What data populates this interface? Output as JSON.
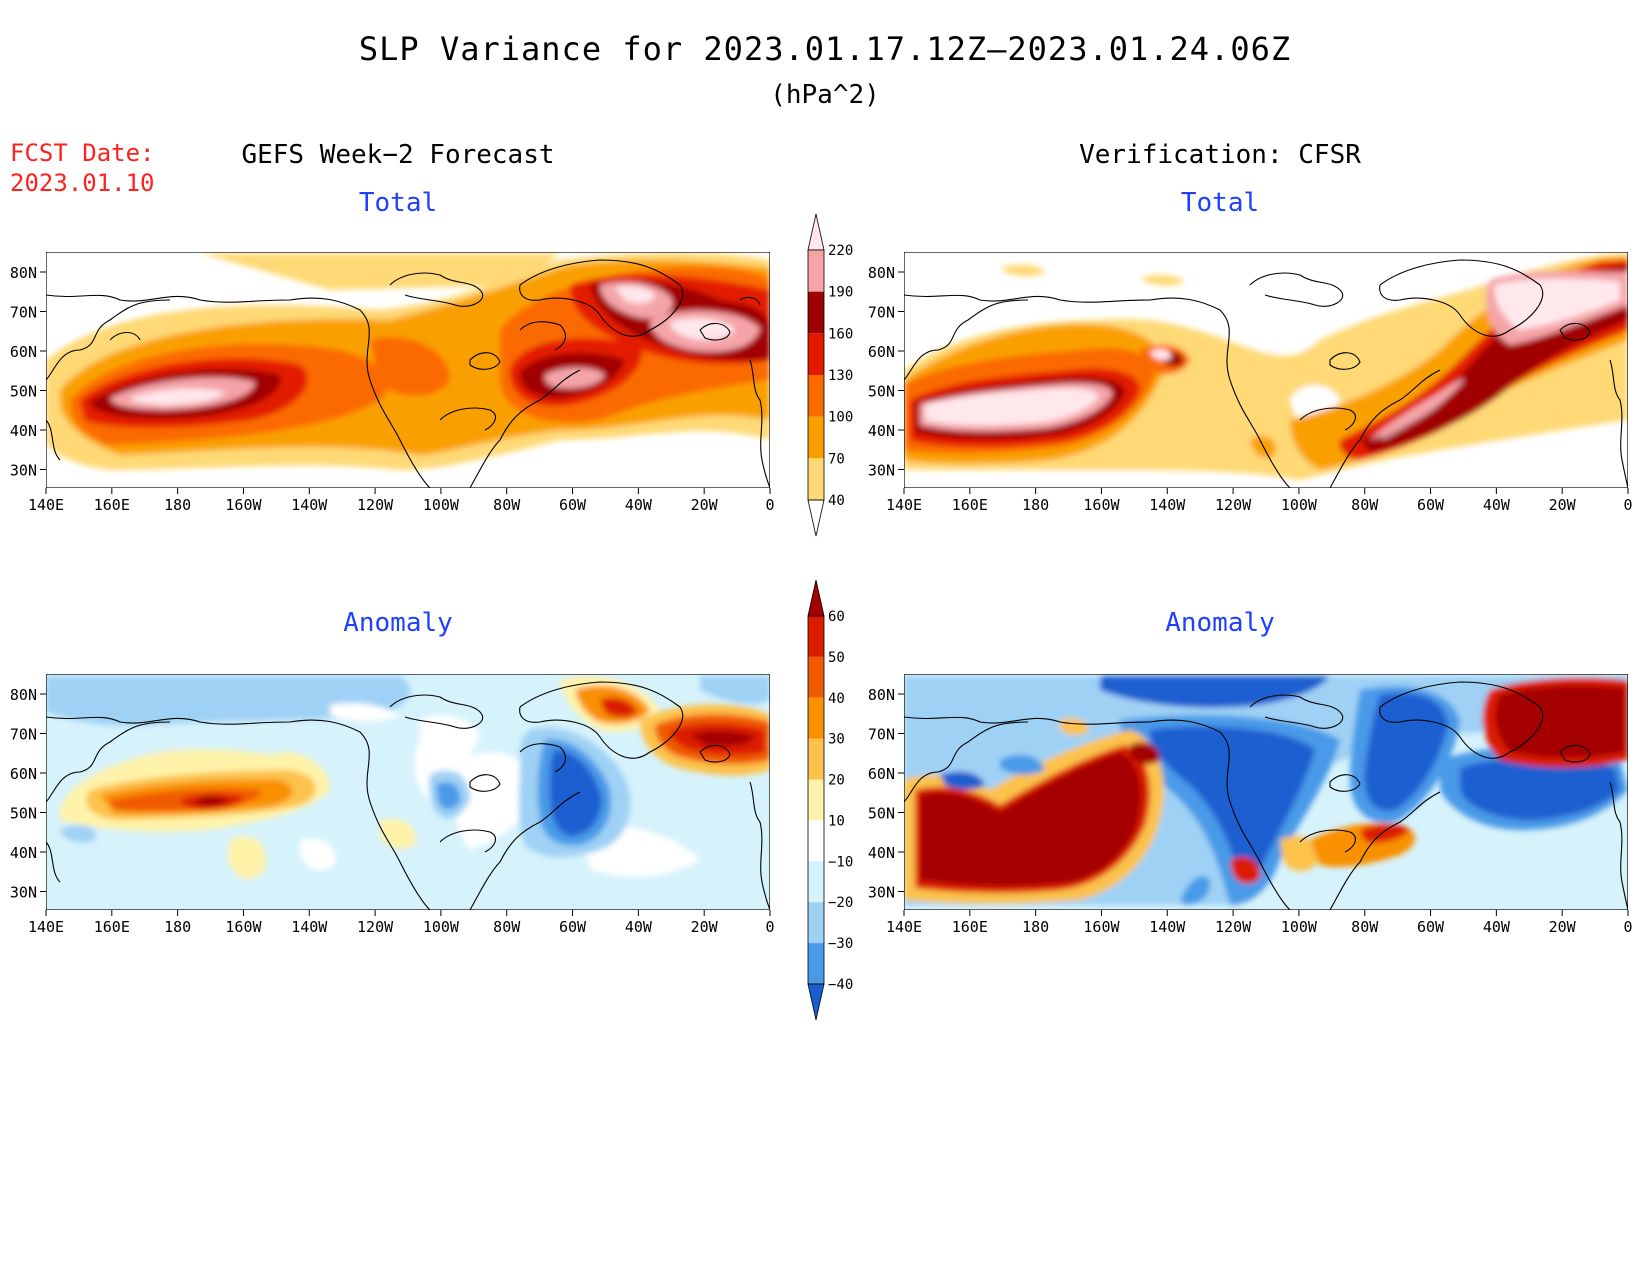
{
  "header": {
    "title": "SLP Variance for 2023.01.17.12Z–2023.01.24.06Z",
    "units": "(hPa^2)",
    "fcst_label": "FCST Date:",
    "fcst_date": "2023.01.10"
  },
  "columns": {
    "left_title": "GEFS Week−2 Forecast",
    "right_title": "Verification: CFSR"
  },
  "panels": {
    "total_label": "Total",
    "anomaly_label": "Anomaly"
  },
  "axes": {
    "lat_labels": [
      "80N",
      "70N",
      "60N",
      "50N",
      "40N",
      "30N"
    ],
    "lon_labels": [
      "140E",
      "160E",
      "180",
      "160W",
      "140W",
      "120W",
      "100W",
      "80W",
      "60W",
      "40W",
      "20W",
      "0"
    ]
  },
  "colorbars": {
    "total": {
      "levels": [
        "220",
        "190",
        "160",
        "130",
        "100",
        "70",
        "40"
      ],
      "colors": [
        "#ffe8ec",
        "#f4a4a8",
        "#a00000",
        "#e31a00",
        "#fb6a00",
        "#f9a000",
        "#fed976",
        "#ffffff"
      ]
    },
    "anomaly": {
      "levels": [
        "60",
        "50",
        "40",
        "30",
        "20",
        "10",
        "−10",
        "−20",
        "−30",
        "−40"
      ],
      "colors": [
        "#a50000",
        "#dc1c00",
        "#f05a00",
        "#f99000",
        "#fcc24c",
        "#fff3aa",
        "#ffffff",
        "#d6f2fb",
        "#9fd1f5",
        "#4a9ae8",
        "#1a5fd0"
      ]
    }
  },
  "colors": {
    "title_text": "#000000",
    "fcst_text": "#ff2020",
    "panel_label": "#2040ff"
  }
}
